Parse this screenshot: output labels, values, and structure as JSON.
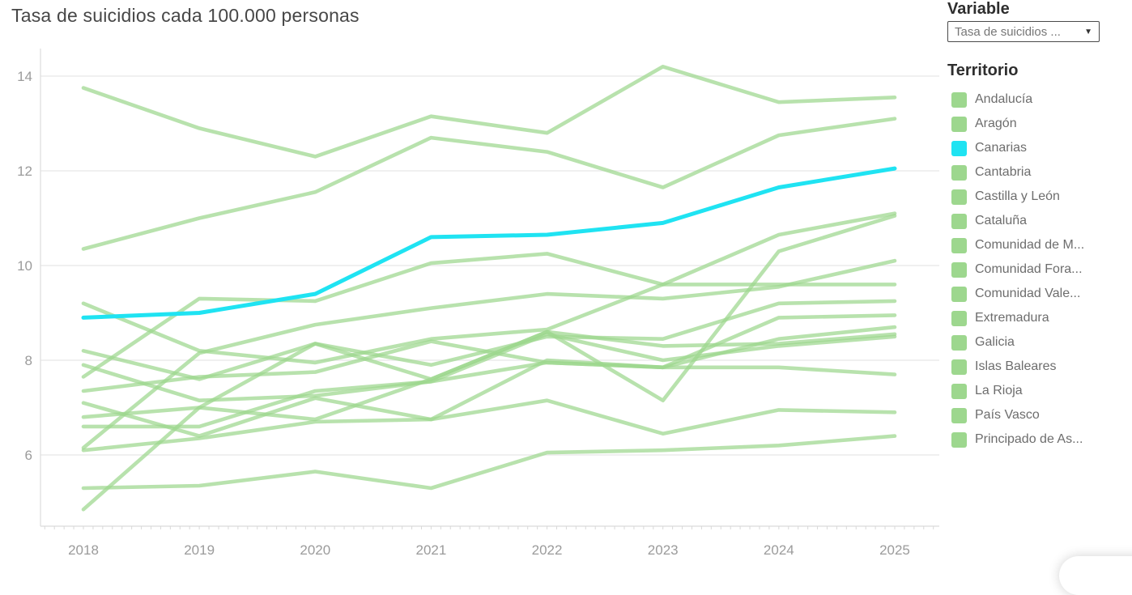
{
  "title": "Tasa de suicidios cada 100.000 personas",
  "variable_panel": {
    "header": "Variable",
    "dropdown_value": "Tasa de suicidios ...",
    "dropdown_caret": "▼"
  },
  "territory_panel": {
    "header": "Territorio"
  },
  "colors": {
    "green_line": "#9dd78e",
    "highlight_cyan": "#1fe3f2",
    "gridline": "#ececec",
    "axis_line": "#e0e0e0",
    "tick": "#d9d9d9",
    "axis_text": "#9b9b9b"
  },
  "chart_data": {
    "type": "line",
    "title": "Tasa de suicidios cada 100.000 personas",
    "xlabel": "",
    "ylabel": "",
    "x": [
      2018,
      2019,
      2020,
      2021,
      2022,
      2023,
      2024,
      2025
    ],
    "yticks": [
      6,
      8,
      10,
      12,
      14
    ],
    "ylim": [
      4.5,
      14.6
    ],
    "grid": true,
    "legend_position": "right",
    "highlighted_series": "Canarias",
    "series": [
      {
        "name": "Andalucía",
        "color": "#9dd78e",
        "values": [
          9.2,
          8.2,
          7.95,
          8.45,
          8.65,
          9.6,
          9.6,
          9.6
        ]
      },
      {
        "name": "Aragón",
        "color": "#9dd78e",
        "values": [
          7.65,
          9.3,
          9.25,
          10.05,
          10.25,
          9.6,
          10.65,
          11.1
        ]
      },
      {
        "name": "Canarias",
        "color": "#1fe3f2",
        "values": [
          8.9,
          9.0,
          9.4,
          10.6,
          10.65,
          10.9,
          11.65,
          12.05
        ]
      },
      {
        "name": "Cantabria",
        "color": "#9dd78e",
        "values": [
          6.15,
          8.15,
          8.75,
          9.1,
          9.4,
          9.3,
          9.55,
          10.1
        ]
      },
      {
        "name": "Castilla y León",
        "color": "#9dd78e",
        "values": [
          7.9,
          7.15,
          7.25,
          7.55,
          7.95,
          7.85,
          8.9,
          8.95
        ]
      },
      {
        "name": "Cataluña",
        "color": "#9dd78e",
        "values": [
          7.35,
          7.65,
          7.75,
          8.4,
          7.95,
          7.85,
          7.85,
          7.7
        ]
      },
      {
        "name": "Comunidad de M...",
        "color": "#9dd78e",
        "values": [
          5.3,
          5.35,
          5.65,
          5.3,
          6.05,
          6.1,
          6.2,
          6.4
        ]
      },
      {
        "name": "Comunidad Fora...",
        "color": "#9dd78e",
        "values": [
          7.1,
          6.4,
          7.2,
          6.75,
          8.0,
          7.85,
          8.45,
          8.7
        ]
      },
      {
        "name": "Comunidad Vale...",
        "color": "#9dd78e",
        "values": [
          8.2,
          7.6,
          8.35,
          7.9,
          8.5,
          8.45,
          9.2,
          9.25
        ]
      },
      {
        "name": "Extremadura",
        "color": "#9dd78e",
        "values": [
          6.8,
          7.0,
          6.75,
          7.6,
          8.6,
          8.3,
          8.35,
          8.55
        ]
      },
      {
        "name": "Galicia",
        "color": "#9dd78e",
        "values": [
          10.35,
          11.0,
          11.55,
          12.7,
          12.4,
          11.65,
          12.75,
          13.1
        ]
      },
      {
        "name": "Islas Baleares",
        "color": "#9dd78e",
        "values": [
          6.6,
          6.6,
          7.35,
          7.55,
          8.55,
          8.0,
          8.3,
          8.5
        ]
      },
      {
        "name": "La Rioja",
        "color": "#9dd78e",
        "values": [
          4.85,
          7.0,
          8.35,
          7.6,
          8.6,
          7.15,
          10.3,
          11.05
        ]
      },
      {
        "name": "País Vasco",
        "color": "#9dd78e",
        "values": [
          6.1,
          6.35,
          6.7,
          6.75,
          7.15,
          6.45,
          6.95,
          6.9
        ]
      },
      {
        "name": "Principado de As...",
        "color": "#9dd78e",
        "values": [
          13.75,
          12.9,
          12.3,
          13.15,
          12.8,
          14.2,
          13.45,
          13.55
        ]
      }
    ]
  }
}
